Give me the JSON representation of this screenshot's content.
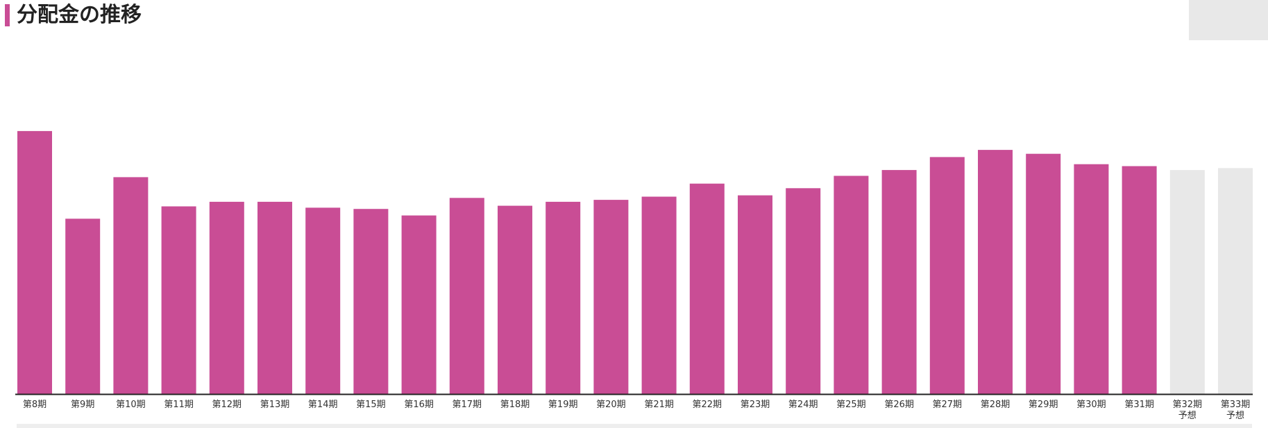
{
  "title": "分配金の推移",
  "colors": {
    "accent": "#c94d95",
    "forecast": "#e8e8e8",
    "axis": "#222222"
  },
  "chart_data": {
    "type": "bar",
    "categories": [
      [
        "第8期"
      ],
      [
        "第9期"
      ],
      [
        "第10期"
      ],
      [
        "第11期"
      ],
      [
        "第12期"
      ],
      [
        "第13期"
      ],
      [
        "第14期"
      ],
      [
        "第15期"
      ],
      [
        "第16期"
      ],
      [
        "第17期"
      ],
      [
        "第18期"
      ],
      [
        "第19期"
      ],
      [
        "第20期"
      ],
      [
        "第21期"
      ],
      [
        "第22期"
      ],
      [
        "第23期"
      ],
      [
        "第24期"
      ],
      [
        "第25期"
      ],
      [
        "第26期"
      ],
      [
        "第27期"
      ],
      [
        "第28期"
      ],
      [
        "第29期"
      ],
      [
        "第30期"
      ],
      [
        "第31期"
      ],
      [
        "第32期",
        "予想"
      ],
      [
        "第33期",
        "予想"
      ]
    ],
    "values": [
      405,
      270,
      334,
      289,
      296,
      296,
      287,
      285,
      275,
      302,
      290,
      296,
      299,
      304,
      324,
      306,
      317,
      336,
      345,
      365,
      376,
      370,
      354,
      351,
      345,
      348
    ],
    "forecast": [
      false,
      false,
      false,
      false,
      false,
      false,
      false,
      false,
      false,
      false,
      false,
      false,
      false,
      false,
      false,
      false,
      false,
      false,
      false,
      false,
      false,
      false,
      false,
      false,
      true,
      true
    ],
    "ylim": [
      0,
      500
    ],
    "grid": false
  }
}
